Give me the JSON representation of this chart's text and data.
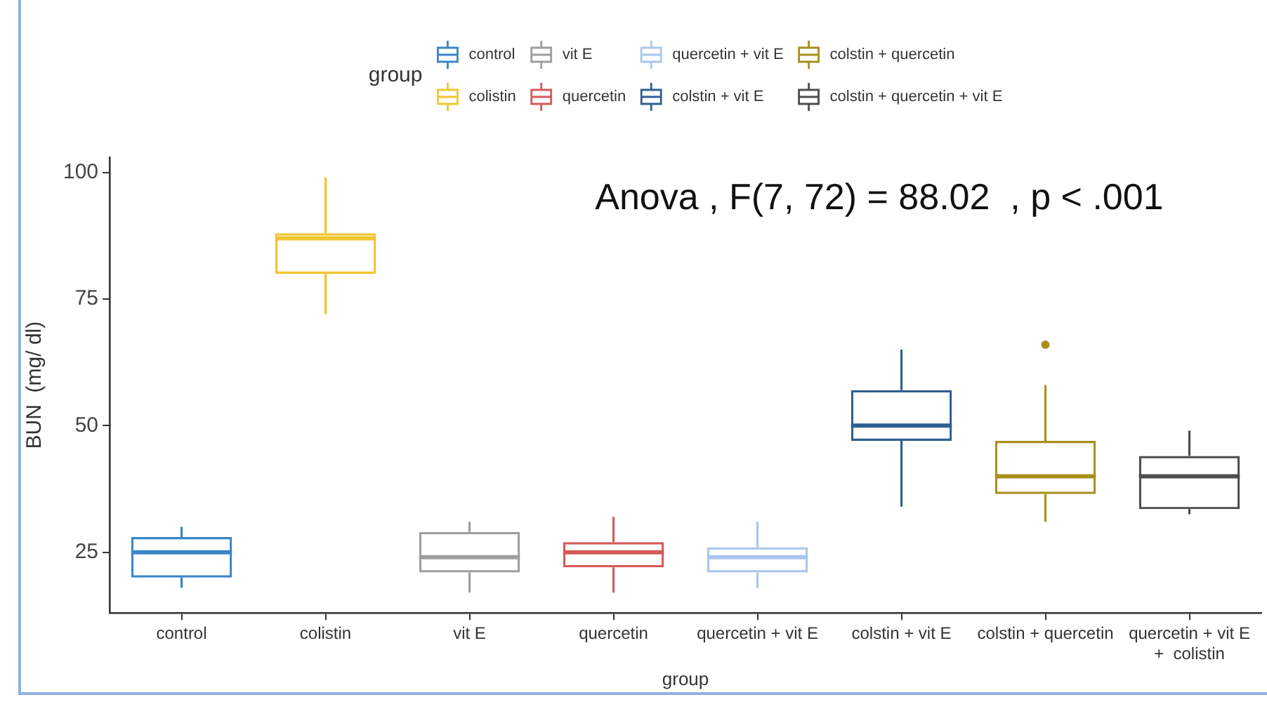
{
  "chart_data": {
    "type": "box",
    "xlabel": "group",
    "ylabel": "BUN  (mg/ dl)",
    "legend_title": "group",
    "legend": "top",
    "annotations": [
      "Anova , F(7, 72) = 88.02  , p < .001"
    ],
    "categories": [
      "control",
      "colistin",
      "vit E",
      "quercetin",
      "quercetin + vit E",
      "colstin + vit E",
      "colstin + quercetin",
      "quercetin + vit E\n+  colistin"
    ],
    "ylim": [
      13,
      103
    ],
    "yticks": [
      25,
      50,
      75,
      100
    ],
    "series": [
      {
        "name": "control",
        "color": "#3a86c8",
        "boxes": [
          {
            "low": 18,
            "q1": 20,
            "median": 25,
            "q3": 28,
            "high": 30
          },
          null,
          null,
          null,
          null,
          null,
          null,
          null
        ]
      },
      {
        "name": "colistin",
        "color": "#f0c530",
        "boxes": [
          null,
          {
            "low": 72,
            "q1": 80,
            "median": 87,
            "q3": 88,
            "high": 99
          },
          null,
          null,
          null,
          null,
          null,
          null
        ]
      },
      {
        "name": "vit E",
        "color": "#9e9e9e",
        "boxes": [
          null,
          null,
          {
            "low": 17,
            "q1": 21,
            "median": 24,
            "q3": 29,
            "high": 31
          },
          null,
          null,
          null,
          null,
          null
        ]
      },
      {
        "name": "quercetin",
        "color": "#d55a5a",
        "boxes": [
          null,
          null,
          null,
          {
            "low": 17,
            "q1": 22,
            "median": 25,
            "q3": 27,
            "high": 32
          },
          null,
          null,
          null,
          null
        ]
      },
      {
        "name": "quercetin + vit E",
        "color": "#a8c6ee",
        "boxes": [
          null,
          null,
          null,
          null,
          {
            "low": 18,
            "q1": 21,
            "median": 24,
            "q3": 26,
            "high": 31
          },
          null,
          null,
          null
        ]
      },
      {
        "name": "colstin + vit E",
        "color": "#2f5f8f",
        "boxes": [
          null,
          null,
          null,
          null,
          null,
          {
            "low": 34,
            "q1": 47,
            "median": 50,
            "q3": 57,
            "high": 65
          },
          null,
          null
        ]
      },
      {
        "name": "colstin + quercetin",
        "color": "#a88f1c",
        "boxes": [
          null,
          null,
          null,
          null,
          null,
          null,
          {
            "low": 31,
            "q1": 36.5,
            "median": 40,
            "q3": 47,
            "high": 58,
            "outliers": [
              66
            ]
          },
          null
        ]
      },
      {
        "name": "colstin + quercetin + vit E",
        "color": "#4d4d4d",
        "boxes": [
          null,
          null,
          null,
          null,
          null,
          null,
          null,
          {
            "low": 32.5,
            "q1": 33.5,
            "median": 40,
            "q3": 44,
            "high": 49
          }
        ]
      }
    ]
  }
}
